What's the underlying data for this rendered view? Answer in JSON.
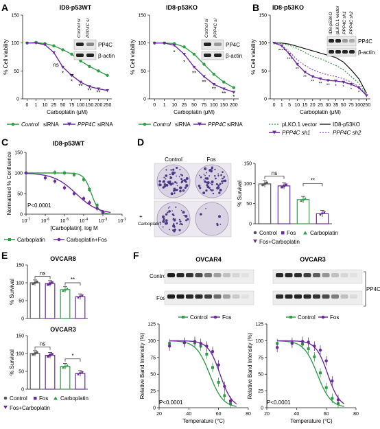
{
  "colors": {
    "green": "#2e9e45",
    "purple": "#6a2b9a",
    "black": "#111111",
    "dish_bg": "#d9d3e4",
    "colony": "#4b3a86"
  },
  "panels": {
    "A": "A",
    "B": "B",
    "C": "C",
    "D": "D",
    "E": "E",
    "F": "F"
  },
  "blot": {
    "pp4c": "PP4C",
    "actin": "β-actin",
    "control_si": "Control si",
    "ppp4c_si": "PPP4C si",
    "b_lanes": [
      "ID8-p53KO",
      "pLKO.1 vector",
      "PPP4C sh1",
      "PPP4C sh2"
    ],
    "f_control": "Control",
    "f_fos": "Fos",
    "f_pp4c": "PP4C"
  },
  "legends": {
    "control_sirna_a": "Control",
    "sirna_a": "siRNA",
    "ppp4c_sirna_a": "PPP4C",
    "sirna_b": "siRNA",
    "control_sirna_c": "Control",
    "sirna_c": "siRNA",
    "ppp4c_sirna_c": "PPP4C",
    "sirna_d": "siRNA",
    "plko": "pLKO.1 vector",
    "id8ko": "ID8-p53KO",
    "sh1": "PPP4C sh1",
    "sh2": "PPP4C sh2",
    "carboplatin": "Carboplatin",
    "carb_fos": "Carboplatin+Fos",
    "control": "Control",
    "fos": "Fos",
    "fos_carb": "Fos+Carboplatin",
    "d_control": "Control",
    "d_fos": "Fos"
  },
  "dish": {
    "control": "Control",
    "fos": "Fos",
    "plus": "+",
    "carboplatin": "Carboplatin"
  },
  "chart_data": [
    {
      "panel": "A-left",
      "type": "line",
      "title": "ID8-p53WT",
      "xlabel": "Carboplatin (μM)",
      "ylabel": "% Cell viability",
      "x_ticks": [
        "0",
        "1",
        "10",
        "25",
        "50",
        "75",
        "100",
        "150",
        "200",
        "250"
      ],
      "y_ticks": [
        "0",
        "50",
        "100",
        "150"
      ],
      "ylim": [
        0,
        150
      ],
      "series": [
        {
          "name": "Control siRNA",
          "values": [
            100,
            101,
            99,
            95,
            88,
            80,
            68,
            58,
            50,
            42
          ]
        },
        {
          "name": "PPP4C siRNA",
          "values": [
            100,
            100,
            97,
            83,
            57,
            42,
            30,
            22,
            18,
            15
          ]
        }
      ],
      "annotations": [
        "ns",
        "*",
        "**",
        "*",
        "**",
        "**",
        "**"
      ]
    },
    {
      "panel": "A-right",
      "type": "line",
      "title": "ID8-p53KO",
      "xlabel": "Carboplatin (μM)",
      "ylabel": "% Cell viability",
      "x_ticks": [
        "0",
        "1",
        "10",
        "25",
        "50",
        "75",
        "100",
        "150",
        "200"
      ],
      "y_ticks": [
        "0",
        "50",
        "100",
        "150"
      ],
      "ylim": [
        0,
        150
      ],
      "series": [
        {
          "name": "Control siRNA",
          "values": [
            100,
            100,
            99,
            93,
            80,
            62,
            44,
            30,
            20
          ]
        },
        {
          "name": "PPP4C siRNA",
          "values": [
            100,
            100,
            96,
            80,
            57,
            40,
            26,
            18,
            12
          ]
        }
      ],
      "annotations": [
        "*",
        "*",
        "**",
        "**",
        "**",
        "**",
        "*"
      ]
    },
    {
      "panel": "B",
      "type": "line",
      "title": "ID8-p53KO",
      "xlabel": "Carboplatin (μM)",
      "ylabel": "% Cell viability",
      "x_ticks": [
        "0",
        "1",
        "5",
        "10",
        "15",
        "20",
        "25",
        "30",
        "35",
        "50",
        "75",
        "100",
        "250"
      ],
      "y_ticks": [
        "0",
        "50",
        "100",
        "150"
      ],
      "ylim": [
        0,
        150
      ],
      "series": [
        {
          "name": "pLKO.1 vector",
          "values": [
            100,
            99,
            96,
            90,
            83,
            76,
            72,
            66,
            60,
            52,
            40,
            28,
            8
          ]
        },
        {
          "name": "ID8-p53KO",
          "values": [
            100,
            100,
            98,
            94,
            90,
            86,
            82,
            78,
            74,
            66,
            52,
            36,
            10
          ]
        },
        {
          "name": "PPP4C sh1",
          "values": [
            100,
            95,
            80,
            62,
            48,
            40,
            36,
            33,
            32,
            30,
            26,
            20,
            6
          ]
        },
        {
          "name": "PPP4C sh2",
          "values": [
            100,
            96,
            84,
            70,
            60,
            52,
            47,
            43,
            40,
            36,
            30,
            22,
            7
          ]
        }
      ],
      "annotations": [
        "****",
        "***",
        "**",
        "**",
        "**",
        "**",
        "**",
        "*",
        "*",
        "*",
        "*"
      ]
    },
    {
      "panel": "C",
      "type": "line",
      "title": "ID8-p53WT",
      "xlabel": "[Carboplatin], log M",
      "ylabel": "Normalized % Confluence",
      "x_ticks": [
        "10^-7",
        "10^-6",
        "10^-5",
        "10^-4",
        "10^-3",
        "10^-2"
      ],
      "y_ticks": [
        "0",
        "50",
        "100",
        "150"
      ],
      "ylim": [
        0,
        150
      ],
      "pvalue": "P<0.0001",
      "series": [
        {
          "name": "Carboplatin",
          "x": [
            -7,
            -5.5,
            -5,
            -4.5,
            -4,
            -3.7,
            -3.3,
            -3
          ],
          "values": [
            100,
            101,
            100,
            96,
            84,
            60,
            22,
            4
          ]
        },
        {
          "name": "Carboplatin+Fos",
          "x": [
            -7,
            -6,
            -5.5,
            -5,
            -4.5,
            -4,
            -3.7,
            -3.3,
            -3
          ],
          "values": [
            100,
            88,
            80,
            64,
            50,
            38,
            28,
            14,
            4
          ]
        }
      ]
    },
    {
      "panel": "D",
      "type": "bar",
      "ylabel": "% Survival",
      "categories": [
        "Control",
        "Fos",
        "Carboplatin",
        "Fos+Carboplatin"
      ],
      "values": [
        99,
        94,
        60,
        25
      ],
      "y_ticks": [
        "0",
        "50",
        "100",
        "150"
      ],
      "ylim": [
        0,
        150
      ],
      "annotations": [
        "ns",
        "**"
      ]
    },
    {
      "panel": "E-top",
      "type": "bar",
      "title": "OVCAR8",
      "ylabel": "% Survival",
      "categories": [
        "Control",
        "Fos",
        "Carboplatin",
        "Fos+Carboplatin"
      ],
      "values": [
        100,
        98,
        81,
        61
      ],
      "y_ticks": [
        "0",
        "50",
        "100",
        "150"
      ],
      "ylim": [
        0,
        150
      ],
      "annotations": [
        "ns",
        "**"
      ]
    },
    {
      "panel": "E-bottom",
      "type": "bar",
      "title": "OVCAR3",
      "ylabel": "% Survival",
      "categories": [
        "Control",
        "Fos",
        "Carboplatin",
        "Fos+Carboplatin"
      ],
      "values": [
        100,
        95,
        64,
        44
      ],
      "y_ticks": [
        "0",
        "50",
        "100",
        "150"
      ],
      "ylim": [
        0,
        150
      ],
      "annotations": [
        "ns",
        "*"
      ]
    },
    {
      "panel": "F-left",
      "type": "line",
      "title": "OVCAR4",
      "xlabel": "Temperature (°C)",
      "ylabel": "Relative Band Intensity (%)",
      "x_ticks": [
        "20",
        "40",
        "60",
        "80"
      ],
      "y_ticks": [
        "0",
        "25",
        "50",
        "75",
        "100",
        "125"
      ],
      "ylim": [
        0,
        125
      ],
      "pvalue": "P<0.0001",
      "series": [
        {
          "name": "Control",
          "x": [
            27,
            37,
            44,
            48,
            52,
            56,
            60,
            64,
            68
          ],
          "values": [
            96,
            98,
            97,
            92,
            80,
            60,
            38,
            18,
            6
          ]
        },
        {
          "name": "Fos",
          "x": [
            27,
            37,
            44,
            48,
            52,
            56,
            60,
            64,
            68
          ],
          "values": [
            92,
            97,
            99,
            96,
            92,
            84,
            64,
            32,
            10
          ]
        }
      ]
    },
    {
      "panel": "F-right",
      "type": "line",
      "title": "OVCAR3",
      "xlabel": "Temperature (°C)",
      "ylabel": "Relative Band Intensity (%)",
      "x_ticks": [
        "20",
        "40",
        "60",
        "80"
      ],
      "y_ticks": [
        "0",
        "25",
        "50",
        "75",
        "100",
        "125"
      ],
      "ylim": [
        0,
        125
      ],
      "pvalue": "P<0.0001",
      "series": [
        {
          "name": "Control",
          "x": [
            27,
            37,
            44,
            48,
            52,
            56,
            60,
            64,
            68
          ],
          "values": [
            96,
            98,
            95,
            88,
            76,
            52,
            30,
            14,
            6
          ]
        },
        {
          "name": "Fos",
          "x": [
            27,
            37,
            44,
            48,
            52,
            56,
            60,
            64,
            68
          ],
          "values": [
            90,
            96,
            99,
            98,
            92,
            86,
            70,
            40,
            12
          ]
        }
      ]
    }
  ]
}
